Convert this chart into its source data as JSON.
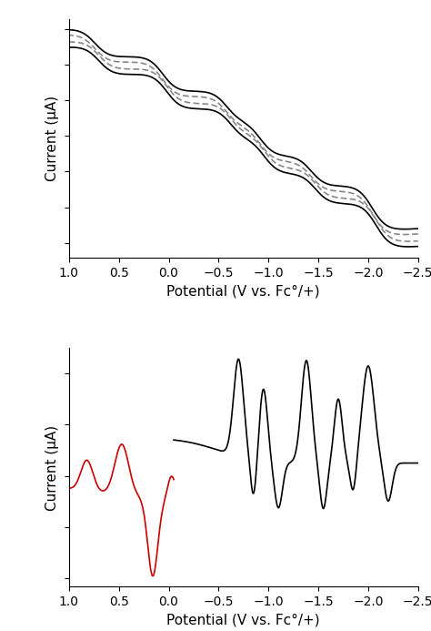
{
  "top_xlabel": "Potential (V vs. Fc°/+)",
  "top_ylabel": "Current (μA)",
  "bottom_xlabel": "Potential (V vs. Fc°/+)",
  "bottom_ylabel": "Current (μA)",
  "top_xticks": [
    1.0,
    0.5,
    0.0,
    -0.5,
    -1.0,
    -1.5,
    -2.0,
    -2.5
  ],
  "bottom_xticks": [
    1.0,
    0.5,
    0.0,
    -0.5,
    -1.0,
    -1.5,
    -2.0,
    -2.5
  ],
  "line_color_cv_black": "#000000",
  "line_color_cv_gray": "#888888",
  "line_color_dpv_black": "#000000",
  "line_color_dpv_red": "#cc0000",
  "background_color": "#ffffff",
  "linewidth": 1.2,
  "fontsize_label": 11,
  "fontsize_tick": 10
}
